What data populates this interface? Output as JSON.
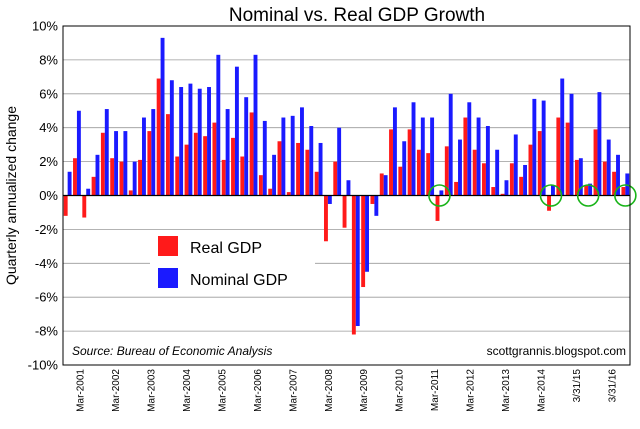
{
  "chart_data": {
    "type": "bar",
    "title": "Nominal vs. Real GDP Growth",
    "ylabel": "Quarterly annualized change",
    "ylim": [
      -10,
      10
    ],
    "y_ticks": [
      "10%",
      "8%",
      "6%",
      "4%",
      "2%",
      "0%",
      "-2%",
      "-4%",
      "-6%",
      "-8%",
      "-10%"
    ],
    "x_tick_labels": [
      "Mar-2001",
      "Mar-2002",
      "Mar-2003",
      "Mar-2004",
      "Mar-2005",
      "Mar-2006",
      "Mar-2007",
      "Mar-2008",
      "Mar-2009",
      "Mar-2010",
      "Mar-2011",
      "Mar-2012",
      "Mar-2013",
      "Mar-2014",
      "3/31/15",
      "3/31/16"
    ],
    "legend": {
      "placement": "center-left",
      "entries": [
        {
          "label": "Real GDP",
          "color": "#ff1a1a"
        },
        {
          "label": "Nominal GDP",
          "color": "#1a1aff"
        }
      ]
    },
    "source": "Source: Bureau of Economic Analysis",
    "credit": "scottgrannis.blogspot.com",
    "grid": true,
    "highlighted_quarters": [
      "2011Q1",
      "2014Q1",
      "2015Q1",
      "2016Q1"
    ],
    "quarters": [
      "2001Q1",
      "2001Q2",
      "2001Q3",
      "2001Q4",
      "2002Q1",
      "2002Q2",
      "2002Q3",
      "2002Q4",
      "2003Q1",
      "2003Q2",
      "2003Q3",
      "2003Q4",
      "2004Q1",
      "2004Q2",
      "2004Q3",
      "2004Q4",
      "2005Q1",
      "2005Q2",
      "2005Q3",
      "2005Q4",
      "2006Q1",
      "2006Q2",
      "2006Q3",
      "2006Q4",
      "2007Q1",
      "2007Q2",
      "2007Q3",
      "2007Q4",
      "2008Q1",
      "2008Q2",
      "2008Q3",
      "2008Q4",
      "2009Q1",
      "2009Q2",
      "2009Q3",
      "2009Q4",
      "2010Q1",
      "2010Q2",
      "2010Q3",
      "2010Q4",
      "2011Q1",
      "2011Q2",
      "2011Q3",
      "2011Q4",
      "2012Q1",
      "2012Q2",
      "2012Q3",
      "2012Q4",
      "2013Q1",
      "2013Q2",
      "2013Q3",
      "2013Q4",
      "2014Q1",
      "2014Q2",
      "2014Q3",
      "2014Q4",
      "2015Q1",
      "2015Q2",
      "2015Q3",
      "2015Q4",
      "2016Q1"
    ],
    "series": [
      {
        "name": "Real GDP",
        "color": "#ff1a1a",
        "values": [
          -1.2,
          2.2,
          -1.3,
          1.1,
          3.7,
          2.2,
          2.0,
          0.3,
          2.1,
          3.8,
          6.9,
          4.8,
          2.3,
          3.0,
          3.7,
          3.5,
          4.3,
          2.1,
          3.4,
          2.3,
          4.9,
          1.2,
          0.4,
          3.2,
          0.2,
          3.1,
          2.7,
          1.4,
          -2.7,
          2.0,
          -1.9,
          -8.2,
          -5.4,
          -0.5,
          1.3,
          3.9,
          1.7,
          3.9,
          2.7,
          2.5,
          -1.5,
          2.9,
          0.8,
          4.6,
          2.7,
          1.9,
          0.5,
          0.1,
          1.9,
          1.1,
          3.0,
          3.8,
          -0.9,
          4.6,
          4.3,
          2.1,
          0.6,
          3.9,
          2.0,
          1.4,
          0.5
        ]
      },
      {
        "name": "Nominal GDP",
        "color": "#1a1aff",
        "values": [
          1.4,
          5.0,
          0.4,
          2.4,
          5.1,
          3.8,
          3.8,
          2.0,
          4.6,
          5.1,
          9.3,
          6.8,
          6.4,
          6.6,
          6.3,
          6.4,
          8.3,
          5.1,
          7.6,
          5.8,
          8.3,
          4.4,
          2.4,
          4.6,
          4.7,
          5.2,
          4.1,
          3.1,
          -0.5,
          4.0,
          0.9,
          -7.7,
          -4.5,
          -1.2,
          1.2,
          5.2,
          3.2,
          5.5,
          4.6,
          4.6,
          0.3,
          6.0,
          3.3,
          5.5,
          4.6,
          4.1,
          2.7,
          0.9,
          3.6,
          1.8,
          5.7,
          5.6,
          0.6,
          6.9,
          6.0,
          2.2,
          0.7,
          6.1,
          3.3,
          2.4,
          1.3
        ]
      }
    ]
  }
}
